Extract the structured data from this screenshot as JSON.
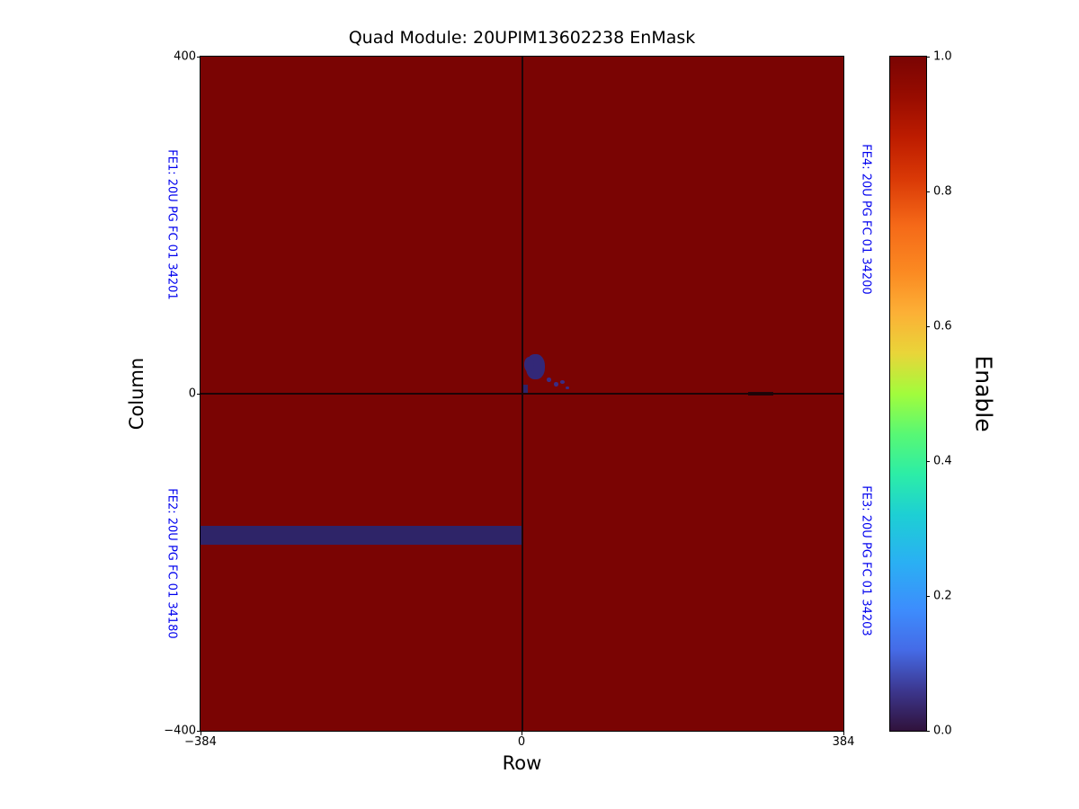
{
  "title": "Quad Module: 20UPIM13602238 EnMask",
  "axes": {
    "xlabel": "Row",
    "ylabel": "Column",
    "x_ticks": [
      "−384",
      "0",
      "384"
    ],
    "y_ticks": [
      "400",
      "0",
      "−400"
    ]
  },
  "fe_labels": {
    "color": "#0000ee",
    "fe1": "FE1: 20U PG FC 01 34201",
    "fe2": "FE2: 20U PG FC 01 34180",
    "fe3": "FE3: 20U PG FC 01 34203",
    "fe4": "FE4: 20U PG FC 01 34200"
  },
  "colorbar": {
    "label": "Enable",
    "ticks": [
      "1.0",
      "0.8",
      "0.6",
      "0.4",
      "0.2",
      "0.0"
    ],
    "colormap": "turbo",
    "gradient": [
      "#7a0403 0%",
      "#980c00 6%",
      "#bd1c00 12%",
      "#d93806 18%",
      "#f56918 25%",
      "#fb8a22 32%",
      "#fcb036 38%",
      "#e9d539 44%",
      "#a2fc3c 50%",
      "#58f874 56%",
      "#2ceda7 62%",
      "#1dcfd4 68%",
      "#2ab0f3 75%",
      "#3d8dfd 82%",
      "#456be7 88%",
      "#3c378f 94%",
      "#30123b 100%"
    ]
  },
  "chart_data": {
    "type": "heatmap",
    "title": "Quad Module: 20UPIM13602238 EnMask",
    "xlabel": "Row",
    "ylabel": "Column",
    "zlabel": "Enable",
    "xlim": [
      -384,
      384
    ],
    "ylim": [
      -400,
      400
    ],
    "zlim": [
      0,
      1
    ],
    "x_tick_values": [
      -384,
      0,
      384
    ],
    "y_tick_values": [
      400,
      0,
      -400
    ],
    "colorbar_tick_values": [
      1.0,
      0.8,
      0.6,
      0.4,
      0.2,
      0.0
    ],
    "background_value": 1,
    "background_color": "#7a0403",
    "disabled_value": 0,
    "disabled_color": "#2e2468",
    "gap_color": "#1c0407",
    "chip_gaps": [
      {
        "axis": "row",
        "value": 0
      },
      {
        "axis": "col",
        "value": 0
      }
    ],
    "disabled_regions": [
      {
        "name": "fe2-disabled-row-band",
        "rows": [
          -384,
          0
        ],
        "cols": [
          -179,
          -157
        ],
        "color": "#2e2468"
      },
      {
        "name": "origin-corner-block",
        "rows": [
          0,
          7
        ],
        "cols": [
          0,
          11
        ],
        "color": "#2e2468"
      },
      {
        "name": "fe4-disabled-blob-main",
        "rows": [
          5,
          27
        ],
        "cols": [
          17,
          47
        ],
        "color": "#332878",
        "radius": "45%"
      },
      {
        "name": "fe4-disabled-blob-lobe",
        "rows": [
          3,
          15
        ],
        "cols": [
          26,
          44
        ],
        "color": "#332878",
        "radius": "50%"
      },
      {
        "name": "fe4-speckle",
        "rows": [
          30,
          35
        ],
        "cols": [
          14,
          19
        ],
        "color": "#3b2d85",
        "radius": "50%"
      },
      {
        "name": "fe4-speckle",
        "rows": [
          38,
          43
        ],
        "cols": [
          9,
          14
        ],
        "color": "#3b2d85",
        "radius": "50%"
      },
      {
        "name": "fe4-speckle",
        "rows": [
          46,
          51
        ],
        "cols": [
          12,
          16
        ],
        "color": "#3b2d85",
        "radius": "50%"
      },
      {
        "name": "fe4-speckle",
        "rows": [
          52,
          56
        ],
        "cols": [
          5,
          9
        ],
        "color": "#3b2d85",
        "radius": "50%"
      },
      {
        "name": "gap-dark-segment",
        "rows": [
          270,
          300
        ],
        "cols": [
          -2,
          2
        ],
        "color": "#20060a"
      }
    ]
  }
}
